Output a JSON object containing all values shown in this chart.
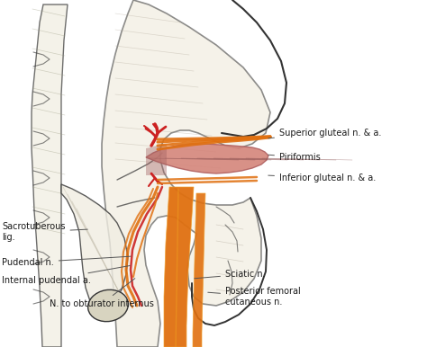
{
  "bg_color": "#ffffff",
  "labels": {
    "superior_gluteal": "Superior gluteal n. & a.",
    "piriformis": "Piriformis",
    "inferior_gluteal": "Inferior gluteal n. & a.",
    "sacrotuberous": "Sacrotuberous\nlig.",
    "pudendal_n": "Pudendal n.",
    "internal_pudendal": "Internal pudendal a.",
    "n_obturator": "N. to obturator internus",
    "sciatic": "Sciatic n.",
    "posterior_femoral": "Posterior femoral\ncutaneous n."
  },
  "muscle_color": "#d4857a",
  "muscle_dark": "#b06060",
  "muscle_shadow": "#8a5050",
  "nerve_color": "#e07010",
  "nerve_light": "#f0a030",
  "artery_color": "#cc2222",
  "artery_light": "#ee4444",
  "bone_color": "#e8e4d8",
  "bone_edge": "#555544",
  "line_color": "#333333",
  "text_color": "#1a1a1a",
  "label_font_size": 7.0
}
